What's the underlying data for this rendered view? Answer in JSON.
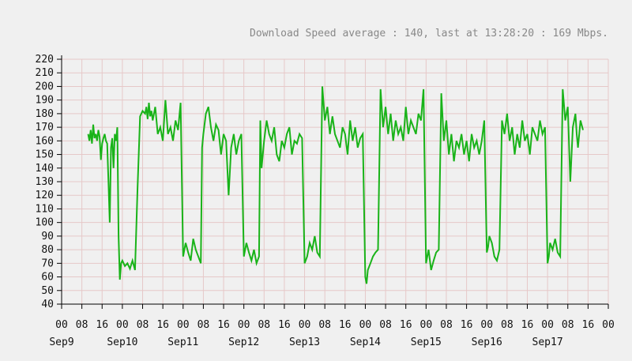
{
  "chart_data": {
    "type": "line",
    "title": "Download Speed average : 140, last at 13:28:20 : 169 Mbps.",
    "xlabel": "",
    "ylabel": "",
    "ylim": [
      40,
      220
    ],
    "yticks": [
      40,
      50,
      60,
      70,
      80,
      90,
      100,
      110,
      120,
      130,
      140,
      150,
      160,
      170,
      180,
      190,
      200,
      210,
      220
    ],
    "x_unit": "hours since Sep9 00:00",
    "xlim": [
      0,
      216
    ],
    "xticks": [
      0,
      8,
      16,
      24,
      32,
      40,
      48,
      56,
      64,
      72,
      80,
      88,
      96,
      104,
      112,
      120,
      128,
      136,
      144,
      152,
      160,
      168,
      176,
      184,
      192,
      200,
      208,
      216
    ],
    "xtick_hour_labels": [
      "00",
      "08",
      "16",
      "00",
      "08",
      "16",
      "00",
      "08",
      "16",
      "00",
      "08",
      "16",
      "00",
      "08",
      "16",
      "00",
      "08",
      "16",
      "00",
      "08",
      "16",
      "00",
      "08",
      "16",
      "00",
      "08",
      "16",
      "00"
    ],
    "xtick_day_labels": [
      {
        "x": 0,
        "label": "Sep9"
      },
      {
        "x": 24,
        "label": "Sep10"
      },
      {
        "x": 48,
        "label": "Sep11"
      },
      {
        "x": 72,
        "label": "Sep12"
      },
      {
        "x": 96,
        "label": "Sep13"
      },
      {
        "x": 120,
        "label": "Sep14"
      },
      {
        "x": 144,
        "label": "Sep15"
      },
      {
        "x": 168,
        "label": "Sep16"
      },
      {
        "x": 192,
        "label": "Sep17"
      }
    ],
    "grid": true,
    "colors": {
      "series": "#19b319",
      "grid": "#e6c8c8",
      "axis": "#000000",
      "plot_bg": "#f0f0f0"
    },
    "series": [
      {
        "x": [
          10.5,
          11,
          11.5,
          12,
          12.5,
          13,
          13.5,
          14,
          14.5,
          15,
          15.5,
          16,
          16.5,
          17,
          17.5,
          18,
          18.5,
          19,
          19.5,
          20,
          20.5,
          21,
          21.5,
          22,
          22.5,
          23,
          23.5,
          24,
          25,
          26,
          27,
          28,
          29,
          30,
          31,
          32,
          33,
          33.5,
          34,
          34.5,
          35,
          35.5,
          36,
          37,
          38,
          39,
          40,
          41,
          42,
          43,
          44,
          45,
          46,
          47,
          48,
          48.5,
          49,
          50,
          51,
          52,
          53,
          54,
          55,
          55.5,
          56,
          57,
          58,
          59,
          60,
          61,
          62,
          63,
          64,
          65,
          66,
          67,
          68,
          69,
          70,
          71,
          72,
          72.5,
          73,
          74,
          75,
          76,
          77,
          78,
          78.5,
          79,
          80,
          81,
          82,
          83,
          84,
          85,
          86,
          87,
          88,
          89,
          90,
          91,
          92,
          93,
          94,
          95,
          96,
          97,
          98,
          99,
          100,
          101,
          102,
          103,
          104,
          105,
          106,
          107,
          108,
          109,
          110,
          111,
          112,
          113,
          114,
          115,
          116,
          117,
          118,
          119,
          120,
          120.5,
          121,
          122,
          123,
          124,
          125,
          126,
          127,
          128,
          129,
          130,
          131,
          132,
          133,
          134,
          135,
          136,
          137,
          138,
          139,
          140,
          141,
          142,
          143,
          144,
          144.5,
          145,
          146,
          147,
          148,
          149,
          150,
          151,
          152,
          153,
          154,
          155,
          156,
          157,
          158,
          159,
          160,
          161,
          162,
          163,
          164,
          165,
          166,
          167,
          168,
          168.5,
          169,
          170,
          171,
          172,
          173,
          174,
          175,
          176,
          177,
          178,
          179,
          180,
          181,
          182,
          183,
          184,
          185,
          186,
          187,
          188,
          189,
          190,
          191,
          192,
          192.5,
          193,
          194,
          195,
          196,
          197,
          198,
          199,
          200,
          201,
          202,
          203,
          203.5,
          204,
          205,
          206
        ],
        "y": [
          165,
          160,
          168,
          158,
          172,
          162,
          165,
          160,
          168,
          163,
          146,
          158,
          162,
          165,
          160,
          158,
          130,
          100,
          155,
          162,
          140,
          165,
          160,
          170,
          90,
          58,
          70,
          72,
          68,
          70,
          66,
          72,
          65,
          125,
          178,
          182,
          180,
          185,
          176,
          188,
          178,
          182,
          175,
          185,
          165,
          170,
          160,
          190,
          165,
          170,
          160,
          175,
          168,
          188,
          75,
          80,
          85,
          78,
          72,
          88,
          80,
          75,
          70,
          155,
          165,
          180,
          185,
          170,
          160,
          172,
          168,
          150,
          165,
          160,
          120,
          155,
          165,
          150,
          160,
          165,
          75,
          80,
          85,
          78,
          72,
          80,
          70,
          75,
          175,
          140,
          160,
          175,
          165,
          160,
          170,
          150,
          145,
          160,
          155,
          165,
          170,
          150,
          160,
          158,
          165,
          162,
          70,
          75,
          85,
          80,
          90,
          78,
          75,
          200,
          175,
          185,
          165,
          178,
          165,
          160,
          155,
          170,
          165,
          150,
          175,
          160,
          170,
          155,
          162,
          165,
          60,
          55,
          65,
          70,
          75,
          78,
          80,
          198,
          170,
          185,
          165,
          180,
          160,
          175,
          165,
          170,
          160,
          185,
          165,
          175,
          170,
          165,
          180,
          175,
          198,
          70,
          75,
          80,
          65,
          72,
          78,
          80,
          195,
          160,
          175,
          150,
          165,
          145,
          160,
          155,
          165,
          150,
          160,
          145,
          165,
          155,
          160,
          150,
          160,
          175,
          78,
          82,
          90,
          85,
          75,
          72,
          80,
          175,
          165,
          180,
          160,
          170,
          150,
          165,
          155,
          175,
          160,
          165,
          150,
          170,
          165,
          160,
          175,
          165,
          170,
          70,
          75,
          85,
          80,
          88,
          78,
          75,
          198,
          175,
          185,
          130,
          170,
          180,
          165,
          155,
          175,
          168
        ]
      }
    ]
  }
}
